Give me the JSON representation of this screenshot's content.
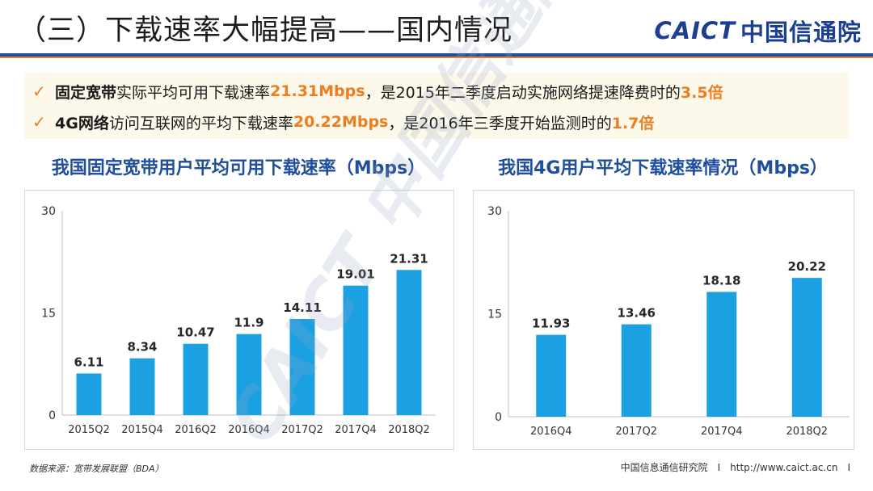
{
  "header": {
    "title": "（三）下载速率大幅提高——国内情况",
    "logo_en": "CAICT",
    "logo_cn": "中国信通院"
  },
  "bullets": [
    {
      "check": "✓",
      "lead": "固定宽带",
      "text1": "实际平均可用下载速率",
      "hl1": "21.31Mbps",
      "text2": "，是2015年二季度启动实施网络提速降费时的",
      "hl2": "3.5倍"
    },
    {
      "check": "✓",
      "lead": "4G网络",
      "text1": "访问互联网的平均下载速率",
      "hl1": "20.22Mbps",
      "text2": "，是2016年三季度开始监测时的",
      "hl2": "1.7倍"
    }
  ],
  "watermark": "CAICT 中国信通院",
  "footer": {
    "source": "数据来源：宽带发展联盟（BDA）",
    "org": "中国信息通信研究院　I　http://www.caict.ac.cn　I"
  },
  "colors": {
    "bar": "#1ba1e2",
    "accent": "#ee7d1f",
    "brand": "#1f4e9e"
  },
  "chart_data": [
    {
      "type": "bar",
      "title": "我国固定宽带用户平均可用下载速率（Mbps）",
      "categories": [
        "2015Q2",
        "2015Q4",
        "2016Q2",
        "2016Q4",
        "2017Q2",
        "2017Q4",
        "2018Q2"
      ],
      "values": [
        6.11,
        8.34,
        10.47,
        11.9,
        14.11,
        19.01,
        21.31
      ],
      "value_labels": [
        "6.11",
        "8.34",
        "10.47",
        "11.9",
        "14.11",
        "19.01",
        "21.31"
      ],
      "yticks": [
        "0",
        "15",
        "30"
      ],
      "ylim": [
        0,
        30
      ],
      "grid": false,
      "legend": "none"
    },
    {
      "type": "bar",
      "title": "我国4G用户平均下载速率情况（Mbps）",
      "categories": [
        "2016Q4",
        "2017Q2",
        "2017Q4",
        "2018Q2"
      ],
      "values": [
        11.93,
        13.46,
        18.18,
        20.22
      ],
      "value_labels": [
        "11.93",
        "13.46",
        "18.18",
        "20.22"
      ],
      "yticks": [
        "0",
        "15",
        "30"
      ],
      "ylim": [
        0,
        30
      ],
      "grid": false,
      "legend": "none"
    }
  ]
}
